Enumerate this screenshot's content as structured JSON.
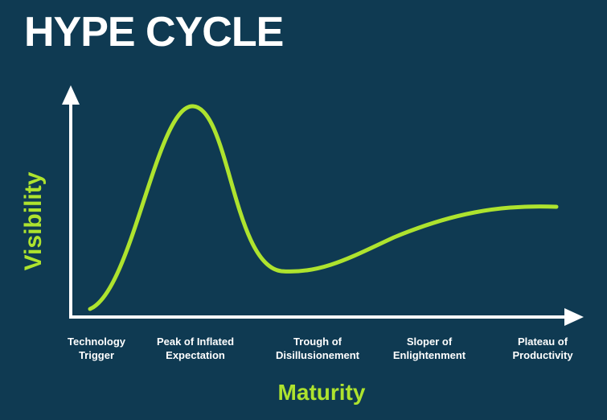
{
  "title": "HYPE CYCLE",
  "y_axis_label": "Visibility",
  "x_axis_label": "Maturity",
  "phases": [
    {
      "label": "Technology\nTrigger"
    },
    {
      "label": "Peak of Inflated\nExpectation"
    },
    {
      "label": "Trough of\nDisillusionement"
    },
    {
      "label": "Sloper of\nEnlightenment"
    },
    {
      "label": "Plateau of\nProductivity"
    }
  ],
  "colors": {
    "background": "#0f3a52",
    "curve": "#aee32e",
    "axis": "#ffffff",
    "title": "#ffffff",
    "axis_labels": "#aee32e",
    "phase_labels": "#ffffff"
  },
  "icons": {
    "y_axis_arrow": "arrow-up-icon",
    "x_axis_arrow": "arrow-right-icon"
  }
}
